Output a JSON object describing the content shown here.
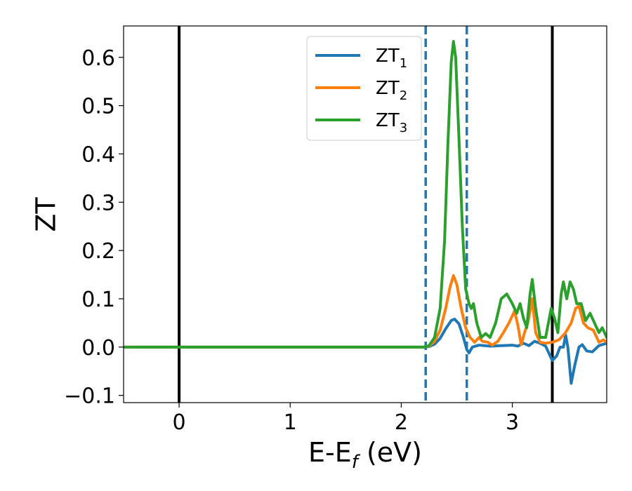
{
  "chart_data": {
    "type": "line",
    "xlabel_main": "E-E",
    "xlabel_sub": "f",
    "xlabel_unit": " (eV)",
    "ylabel": "ZT",
    "xlim": [
      -0.5,
      3.85
    ],
    "ylim": [
      -0.115,
      0.665
    ],
    "x_ticks": [
      0,
      1,
      2,
      3
    ],
    "x_tick_labels": [
      "0",
      "1",
      "2",
      "3"
    ],
    "y_ticks": [
      -0.1,
      0.0,
      0.1,
      0.2,
      0.3,
      0.4,
      0.5,
      0.6
    ],
    "y_tick_labels": [
      "−0.1",
      "0.0",
      "0.1",
      "0.2",
      "0.3",
      "0.4",
      "0.5",
      "0.6"
    ],
    "grid": false,
    "legend_position": "top-center",
    "vertical_lines": [
      {
        "x": 0.0,
        "style": "solid",
        "color": "#000000"
      },
      {
        "x": 3.36,
        "style": "solid",
        "color": "#000000"
      },
      {
        "x": 2.22,
        "style": "dashed",
        "color": "#1f77b4"
      },
      {
        "x": 2.59,
        "style": "dashed",
        "color": "#1f77b4"
      }
    ],
    "series": [
      {
        "name_main": "ZT",
        "name_sub": "1",
        "color": "#1f77b4",
        "points": [
          [
            -0.5,
            0
          ],
          [
            2.2,
            0
          ],
          [
            2.25,
            0.001
          ],
          [
            2.3,
            0.006
          ],
          [
            2.35,
            0.018
          ],
          [
            2.4,
            0.038
          ],
          [
            2.45,
            0.055
          ],
          [
            2.48,
            0.058
          ],
          [
            2.52,
            0.048
          ],
          [
            2.56,
            0.02
          ],
          [
            2.59,
            -0.005
          ],
          [
            2.61,
            -0.012
          ],
          [
            2.64,
            0.0
          ],
          [
            2.7,
            0.004
          ],
          [
            2.8,
            0.002
          ],
          [
            2.9,
            0.003
          ],
          [
            3.0,
            0.004
          ],
          [
            3.05,
            0.002
          ],
          [
            3.1,
            0.008
          ],
          [
            3.15,
            0.003
          ],
          [
            3.2,
            0.012
          ],
          [
            3.25,
            0.008
          ],
          [
            3.3,
            0.002
          ],
          [
            3.36,
            -0.028
          ],
          [
            3.4,
            -0.018
          ],
          [
            3.43,
            0.0
          ],
          [
            3.46,
            0.0
          ],
          [
            3.48,
            0.025
          ],
          [
            3.5,
            0.0
          ],
          [
            3.53,
            -0.075
          ],
          [
            3.56,
            -0.04
          ],
          [
            3.6,
            0.0
          ],
          [
            3.63,
            0.005
          ],
          [
            3.67,
            -0.008
          ],
          [
            3.72,
            -0.01
          ],
          [
            3.78,
            0.003
          ],
          [
            3.85,
            0.008
          ]
        ]
      },
      {
        "name_main": "ZT",
        "name_sub": "2",
        "color": "#ff7f0e",
        "points": [
          [
            -0.5,
            0
          ],
          [
            2.2,
            0
          ],
          [
            2.25,
            0.002
          ],
          [
            2.3,
            0.012
          ],
          [
            2.35,
            0.035
          ],
          [
            2.4,
            0.08
          ],
          [
            2.44,
            0.125
          ],
          [
            2.47,
            0.148
          ],
          [
            2.5,
            0.13
          ],
          [
            2.54,
            0.08
          ],
          [
            2.58,
            0.04
          ],
          [
            2.62,
            0.02
          ],
          [
            2.66,
            0.01
          ],
          [
            2.7,
            0.02
          ],
          [
            2.73,
            0.012
          ],
          [
            2.78,
            0.01
          ],
          [
            2.82,
            0.004
          ],
          [
            2.87,
            0.012
          ],
          [
            2.92,
            0.03
          ],
          [
            2.97,
            0.05
          ],
          [
            3.02,
            0.075
          ],
          [
            3.05,
            0.045
          ],
          [
            3.08,
            0.005
          ],
          [
            3.11,
            0.03
          ],
          [
            3.14,
            0.05
          ],
          [
            3.18,
            0.1
          ],
          [
            3.21,
            0.03
          ],
          [
            3.25,
            0.01
          ],
          [
            3.3,
            0.008
          ],
          [
            3.36,
            0.01
          ],
          [
            3.42,
            0.015
          ],
          [
            3.48,
            0.03
          ],
          [
            3.53,
            0.05
          ],
          [
            3.57,
            0.08
          ],
          [
            3.6,
            0.085
          ],
          [
            3.64,
            0.05
          ],
          [
            3.68,
            0.04
          ],
          [
            3.73,
            0.035
          ],
          [
            3.78,
            0.01
          ],
          [
            3.82,
            0.015
          ],
          [
            3.85,
            0.01
          ]
        ]
      },
      {
        "name_main": "ZT",
        "name_sub": "3",
        "color": "#2ca02c",
        "points": [
          [
            -0.5,
            0
          ],
          [
            2.2,
            0
          ],
          [
            2.25,
            0.003
          ],
          [
            2.3,
            0.02
          ],
          [
            2.35,
            0.08
          ],
          [
            2.39,
            0.22
          ],
          [
            2.42,
            0.42
          ],
          [
            2.45,
            0.59
          ],
          [
            2.47,
            0.633
          ],
          [
            2.49,
            0.6
          ],
          [
            2.52,
            0.43
          ],
          [
            2.55,
            0.25
          ],
          [
            2.58,
            0.12
          ],
          [
            2.61,
            0.09
          ],
          [
            2.63,
            0.08
          ],
          [
            2.65,
            0.09
          ],
          [
            2.68,
            0.05
          ],
          [
            2.72,
            0.02
          ],
          [
            2.76,
            0.028
          ],
          [
            2.8,
            0.02
          ],
          [
            2.85,
            0.05
          ],
          [
            2.9,
            0.1
          ],
          [
            2.95,
            0.11
          ],
          [
            3.0,
            0.09
          ],
          [
            3.04,
            0.07
          ],
          [
            3.07,
            0.09
          ],
          [
            3.1,
            0.06
          ],
          [
            3.13,
            0.04
          ],
          [
            3.16,
            0.11
          ],
          [
            3.18,
            0.14
          ],
          [
            3.21,
            0.08
          ],
          [
            3.25,
            0.02
          ],
          [
            3.3,
            0.02
          ],
          [
            3.35,
            0.08
          ],
          [
            3.38,
            0.06
          ],
          [
            3.41,
            0.03
          ],
          [
            3.44,
            0.11
          ],
          [
            3.46,
            0.135
          ],
          [
            3.49,
            0.1
          ],
          [
            3.52,
            0.135
          ],
          [
            3.55,
            0.12
          ],
          [
            3.58,
            0.09
          ],
          [
            3.62,
            0.09
          ],
          [
            3.66,
            0.055
          ],
          [
            3.7,
            0.07
          ],
          [
            3.74,
            0.05
          ],
          [
            3.78,
            0.03
          ],
          [
            3.81,
            0.04
          ],
          [
            3.85,
            0.02
          ]
        ]
      }
    ]
  }
}
